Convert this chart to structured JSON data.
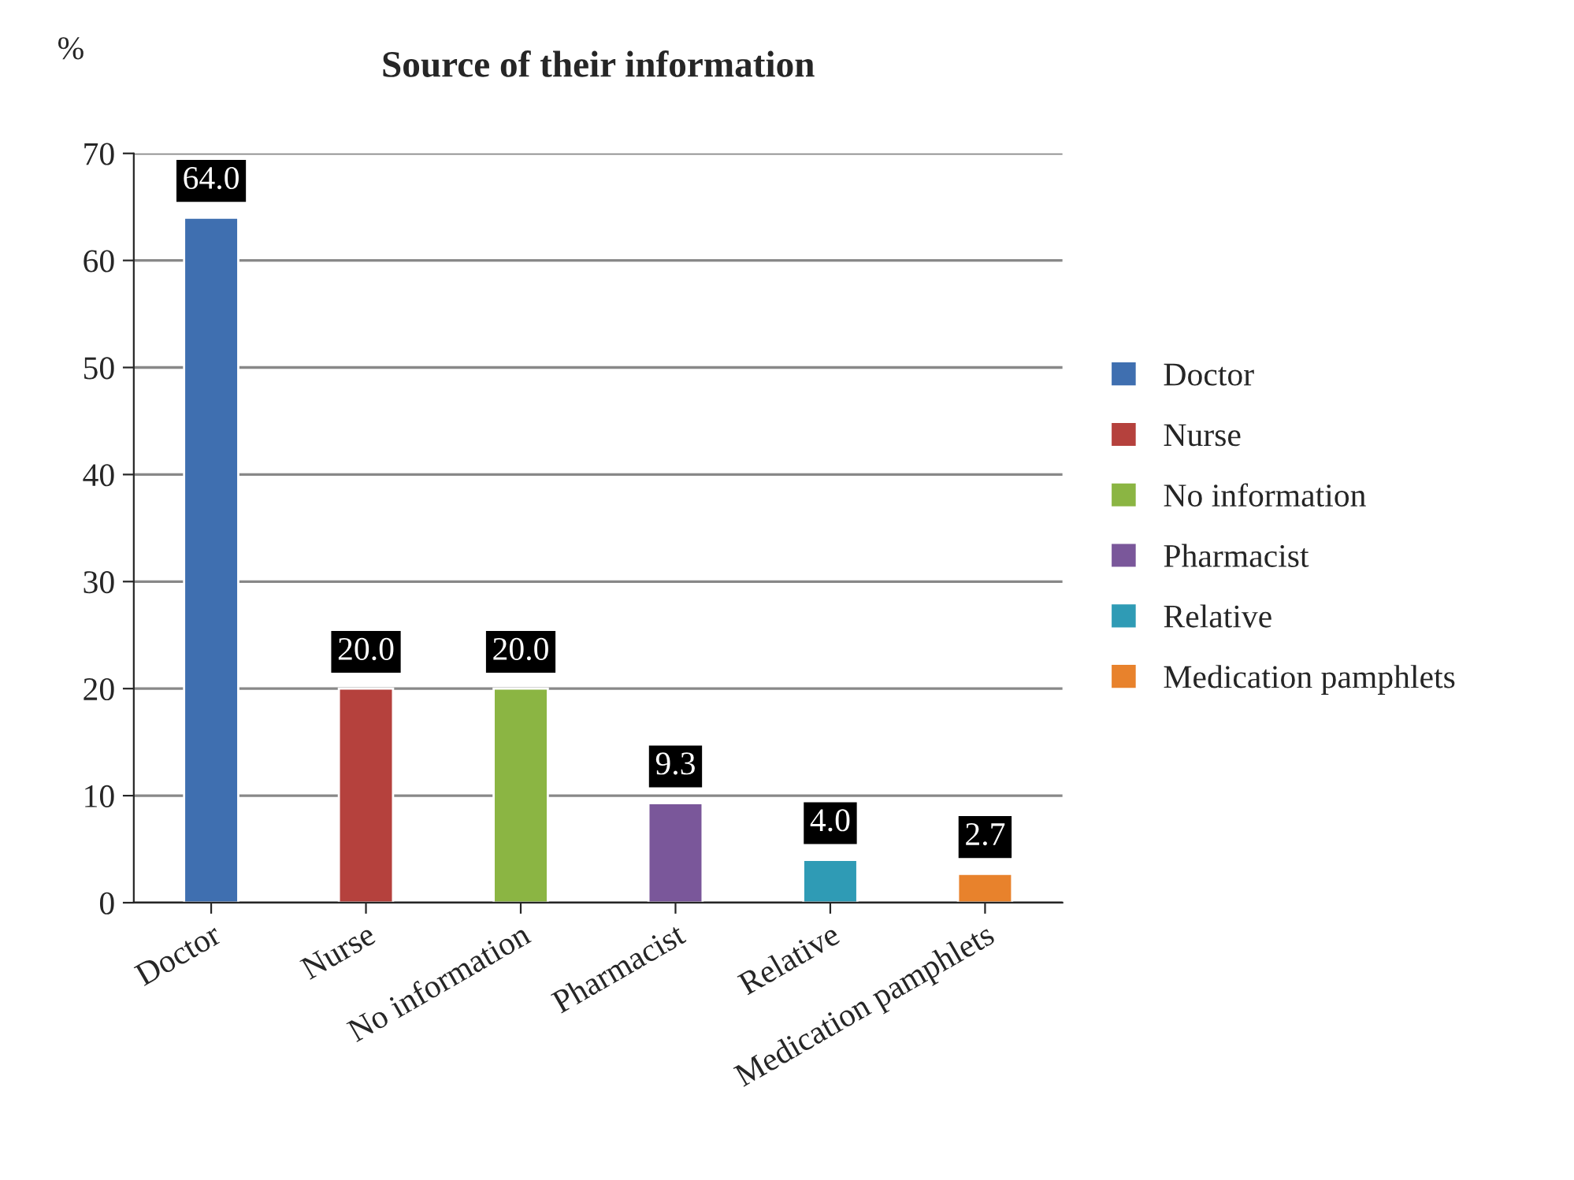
{
  "chart_data": {
    "type": "bar",
    "title": "Source of their information",
    "ylabel": "%",
    "categories": [
      "Doctor",
      "Nurse",
      "No information",
      "Pharmacist",
      "Relative",
      "Medication pamphlets"
    ],
    "series": [
      {
        "name": "Doctor",
        "color": "#3f6fb0",
        "values": [
          64.0,
          null,
          null,
          null,
          null,
          null
        ],
        "value_labels": [
          "64.0",
          null,
          null,
          null,
          null,
          null
        ]
      },
      {
        "name": "Nurse",
        "color": "#b5413d",
        "values": [
          null,
          20.0,
          null,
          null,
          null,
          null
        ],
        "value_labels": [
          null,
          "20.0",
          null,
          null,
          null,
          null
        ]
      },
      {
        "name": "No information",
        "color": "#8bb543",
        "values": [
          null,
          null,
          20.0,
          null,
          null,
          null
        ],
        "value_labels": [
          null,
          null,
          "20.0",
          null,
          null,
          null
        ]
      },
      {
        "name": "Pharmacist",
        "color": "#7a579a",
        "values": [
          null,
          null,
          null,
          9.3,
          null,
          null
        ],
        "value_labels": [
          null,
          null,
          null,
          "9.3",
          null,
          null
        ]
      },
      {
        "name": "Relative",
        "color": "#2f9bb5",
        "values": [
          null,
          null,
          null,
          null,
          4.0,
          null
        ],
        "value_labels": [
          null,
          null,
          null,
          null,
          "4.0",
          null
        ]
      },
      {
        "name": "Medication pamphlets",
        "color": "#e8822c",
        "values": [
          null,
          null,
          null,
          null,
          null,
          2.7
        ],
        "value_labels": [
          null,
          null,
          null,
          null,
          null,
          "2.7"
        ]
      }
    ],
    "ylim": [
      0,
      70
    ],
    "yticks": [
      0,
      10,
      20,
      30,
      40,
      50,
      60,
      70
    ],
    "grid": "y",
    "legend": "right"
  }
}
